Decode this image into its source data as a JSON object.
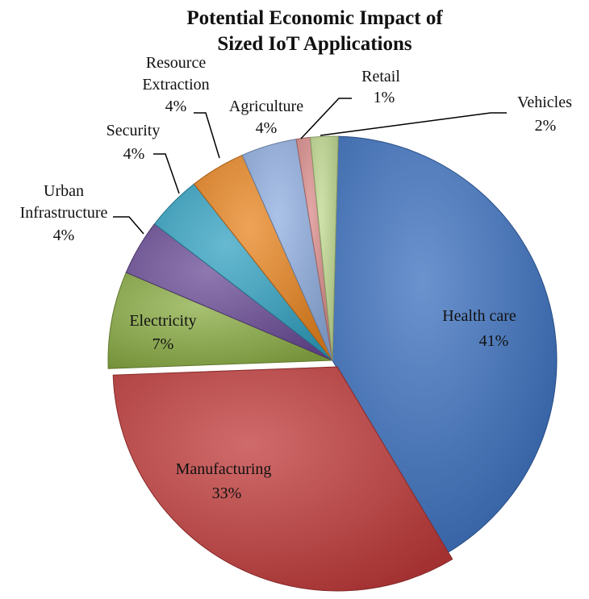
{
  "chart_data": {
    "type": "pie",
    "title": [
      "Potential Economic Impact of",
      "Sized IoT Applications"
    ],
    "slices": [
      {
        "name": "Health care",
        "value": 41,
        "pct": "41%",
        "color": "#3a6fbd"
      },
      {
        "name": "Manufacturing",
        "value": 33,
        "pct": "33%",
        "color": "#c03a3a"
      },
      {
        "name": "Electricity",
        "value": 7,
        "pct": "7%",
        "color": "#8aac43"
      },
      {
        "name": "Urban Infrastructure",
        "value": 4,
        "pct": "4%",
        "color": "#6a4b96"
      },
      {
        "name": "Security",
        "value": 4,
        "pct": "4%",
        "color": "#33a2c2"
      },
      {
        "name": "Resource Extraction",
        "value": 4,
        "pct": "4%",
        "color": "#e8841f"
      },
      {
        "name": "Agriculture",
        "value": 4,
        "pct": "4%",
        "color": "#8faee0"
      },
      {
        "name": "Retail",
        "value": 1,
        "pct": "1%",
        "color": "#d98b89"
      },
      {
        "name": "Vehicles",
        "value": 2,
        "pct": "2%",
        "color": "#bfd88f"
      }
    ]
  }
}
